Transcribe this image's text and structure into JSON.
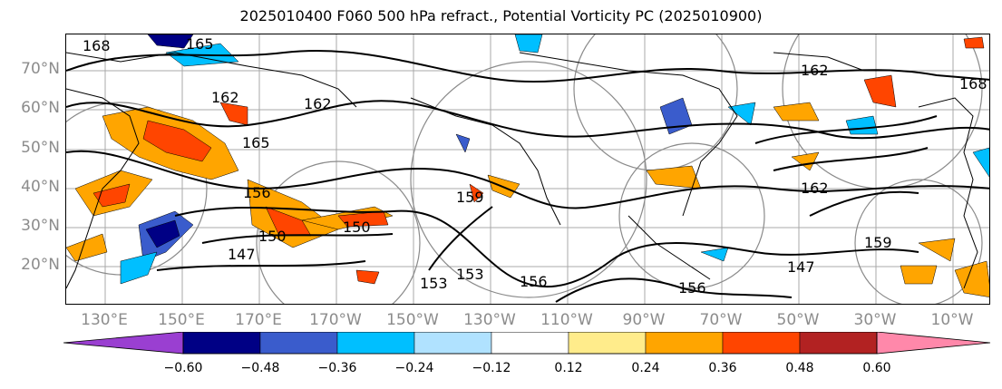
{
  "title": "2025010400 F060 500 hPa refract., Potential Vorticity PC (2025010900)",
  "lat_labels": [
    "70°N",
    "60°N",
    "50°N",
    "40°N",
    "30°N",
    "20°N"
  ],
  "lon_labels": [
    "130°E",
    "150°E",
    "170°E",
    "170°W",
    "150°W",
    "130°W",
    "110°W",
    "90°W",
    "70°W",
    "50°W",
    "30°W",
    "10°W"
  ],
  "contour_labels": [
    "168",
    "165",
    "162",
    "162",
    "165",
    "156",
    "150",
    "150",
    "147",
    "159",
    "153",
    "156",
    "153",
    "162",
    "156",
    "147",
    "162",
    "168",
    "159"
  ],
  "colorbar": {
    "tick_labels": [
      "−0.60",
      "−0.48",
      "−0.36",
      "−0.24",
      "−0.12",
      "0.12",
      "0.24",
      "0.36",
      "0.48",
      "0.60"
    ],
    "colors": [
      "#9a3fd1",
      "#000085",
      "#3a5ccc",
      "#00bfff",
      "#b0e2ff",
      "#ffffff",
      "#ffec8b",
      "#ffa500",
      "#ff4500",
      "#b22222",
      "#ff88aa"
    ]
  }
}
